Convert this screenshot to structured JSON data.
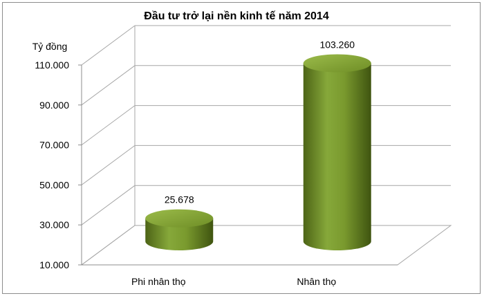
{
  "chart_data": {
    "type": "bar",
    "title": "Đầu tư trở lại nền kinh tế năm 2014",
    "ylabel": "Tỷ đồng",
    "xlabel": "",
    "categories": [
      "Phi nhân thọ",
      "Nhân thọ"
    ],
    "values": [
      25678,
      103260
    ],
    "data_labels": [
      "25.678",
      "103.260"
    ],
    "ylim": [
      10000,
      110000
    ],
    "y_ticks": [
      10000,
      30000,
      50000,
      70000,
      90000,
      110000
    ],
    "y_tick_labels": [
      "10.000",
      "30.000",
      "50.000",
      "70.000",
      "90.000",
      "110.000"
    ],
    "bar_color": "#7a9a2e",
    "grid": true,
    "style": "3d-cylinder"
  }
}
